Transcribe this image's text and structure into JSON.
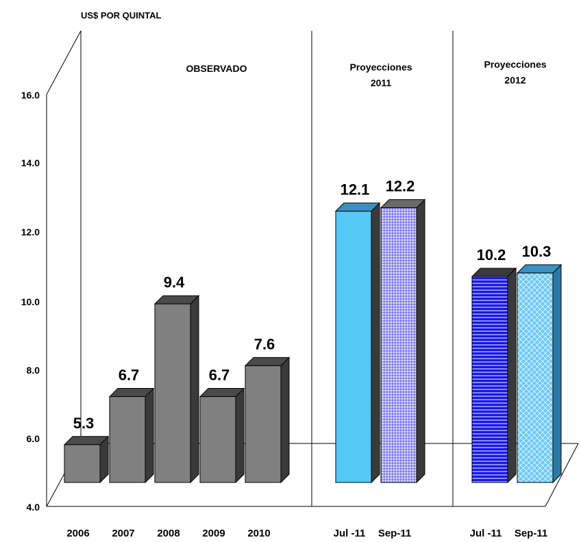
{
  "chart_data": {
    "type": "bar",
    "title": "",
    "ylabel": "US$ POR QUINTAL",
    "xlabel": "",
    "ylim": [
      4.0,
      16.0
    ],
    "yticks": [
      "4.0",
      "6.0",
      "8.0",
      "10.0",
      "12.0",
      "14.0",
      "16.0"
    ],
    "grid": false,
    "legend": "none",
    "sections": [
      "OBSERVADO",
      "Proyecciones\n2011",
      "Proyecciones\n2012"
    ],
    "categories": [
      "2006",
      "2007",
      "2008",
      "2009",
      "2010",
      "Jul -11",
      "Sep-11",
      "Jul -11",
      "Sep-11"
    ],
    "values": [
      5.3,
      6.7,
      9.4,
      6.7,
      7.6,
      12.1,
      12.2,
      10.2,
      10.3
    ],
    "value_labels": [
      "5.3",
      "6.7",
      "9.4",
      "6.7",
      "7.6",
      "12.1",
      "12.2",
      "10.2",
      "10.3"
    ],
    "bar_colors": [
      "#808080",
      "#808080",
      "#808080",
      "#808080",
      "#808080",
      "#55c8f8",
      "#9a9ae8",
      "#1a1adc",
      "#7ad0f5"
    ]
  }
}
